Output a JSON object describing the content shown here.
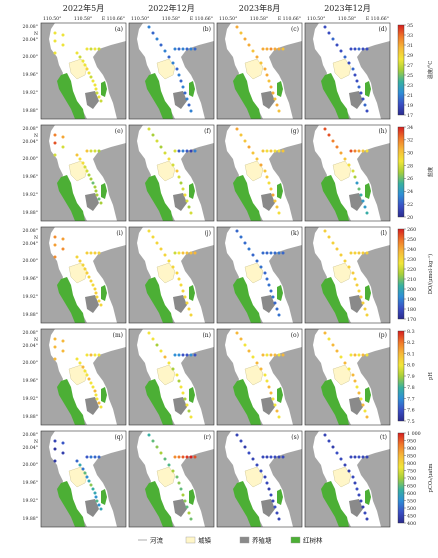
{
  "columns": [
    "2022年5月",
    "2022年12月",
    "2023年8月",
    "2023年12月"
  ],
  "x_ticks": [
    "110.50°",
    "110.58°",
    "E 110.66°"
  ],
  "y_ticks": [
    "20.08°",
    "N",
    "20.04°",
    "20.00°",
    "19.96°",
    "19.92°",
    "19.88°"
  ],
  "panel_letters": [
    [
      "(a)",
      "(b)",
      "(c)",
      "(d)"
    ],
    [
      "(e)",
      "(f)",
      "(g)",
      "(h)"
    ],
    [
      "(i)",
      "(j)",
      "(k)",
      "(l)"
    ],
    [
      "(m)",
      "(n)",
      "(o)",
      "(p)"
    ],
    [
      "(q)",
      "(r)",
      "(s)",
      "(t)"
    ]
  ],
  "colorbars": [
    {
      "label": "温度/°C",
      "ticks": [
        "35",
        "33",
        "31",
        "29",
        "27",
        "25",
        "23",
        "21",
        "19",
        "17"
      ],
      "min": 17,
      "max": 35
    },
    {
      "label": "盐度",
      "ticks": [
        "34",
        "32",
        "30",
        "28",
        "26",
        "24",
        "22",
        "20"
      ],
      "min": 20,
      "max": 34
    },
    {
      "label": "DO/(μmol·kg⁻¹)",
      "ticks": [
        "260",
        "250",
        "240",
        "230",
        "220",
        "210",
        "200",
        "190",
        "180",
        "170"
      ],
      "min": 170,
      "max": 260
    },
    {
      "label": "pH",
      "ticks": [
        "8.3",
        "8.2",
        "8.1",
        "8.0",
        "7.9",
        "7.8",
        "7.7",
        "7.6",
        "7.5"
      ],
      "min": 7.5,
      "max": 8.3
    },
    {
      "label": "pCO₂/μatm",
      "ticks": [
        "1 000",
        "950",
        "900",
        "850",
        "800",
        "750",
        "700",
        "650",
        "600",
        "550",
        "500",
        "450",
        "400"
      ],
      "min": 400,
      "max": 1000
    }
  ],
  "legend": [
    {
      "label": "河流",
      "kind": "river"
    },
    {
      "label": "城镇",
      "kind": "town"
    },
    {
      "label": "养殖塘",
      "kind": "pond"
    },
    {
      "label": "红树林",
      "kind": "mangrove"
    }
  ],
  "colors": {
    "land": "#a6a6a6",
    "water": "#ffffff",
    "mangrove": "#4caf35",
    "town": "#fff6c8",
    "pond": "#8a8a8a"
  },
  "station_values": [
    [
      {
        "open": [
          28,
          28,
          28,
          28,
          28
        ],
        "main": [
          28,
          27,
          28,
          28,
          29,
          28,
          27,
          28,
          28,
          28,
          27,
          28,
          27
        ],
        "branch": [
          28,
          27,
          28,
          27
        ]
      },
      {
        "open": [],
        "main": [
          21,
          20,
          21,
          20,
          21,
          20,
          21,
          20,
          21,
          20,
          21,
          20,
          21,
          20,
          21
        ],
        "branch": [
          21,
          20,
          21,
          20,
          21,
          20
        ]
      },
      {
        "open": [],
        "main": [
          31,
          30,
          31,
          31,
          30,
          31,
          30,
          31,
          31,
          30,
          31,
          31,
          30,
          31,
          30
        ],
        "branch": [
          31,
          31,
          32,
          31,
          31,
          30
        ]
      },
      {
        "open": [],
        "main": [
          19,
          19,
          20,
          19,
          19,
          20,
          19,
          20,
          19,
          19,
          20,
          19,
          19,
          20,
          19
        ],
        "branch": [
          19,
          19,
          20,
          19,
          19
        ]
      }
    ],
    [
      {
        "open": [
          32,
          33,
          28,
          31,
          28
        ],
        "main": [
          30,
          29,
          29,
          28,
          28,
          27,
          27,
          26,
          27,
          27,
          27,
          26,
          27
        ],
        "branch": [
          30,
          28,
          28,
          27
        ]
      },
      {
        "open": [],
        "main": [
          28,
          27,
          28,
          27,
          28,
          29,
          28,
          30,
          28,
          27,
          28,
          29,
          28,
          27,
          28
        ],
        "branch": [
          28,
          22,
          23,
          22,
          21,
          23
        ]
      },
      {
        "open": [],
        "main": [
          31,
          30,
          30,
          31,
          30,
          30,
          31,
          30,
          30,
          29,
          30,
          31,
          30,
          30,
          29
        ],
        "branch": [
          30,
          29,
          30,
          29,
          29,
          30
        ]
      },
      {
        "open": [],
        "main": [
          33,
          33,
          32,
          32,
          31,
          30,
          29,
          28,
          27,
          24,
          26,
          25,
          24,
          24,
          25
        ],
        "branch": [
          33,
          32,
          31,
          30,
          29
        ]
      }
    ],
    [
      {
        "open": [
          245,
          242,
          245,
          242,
          245
        ],
        "main": [
          230,
          232,
          230,
          231,
          232,
          230,
          231,
          229,
          231,
          232,
          230,
          231,
          230
        ],
        "branch": [
          232,
          231,
          232,
          231
        ]
      },
      {
        "open": [],
        "main": [
          228,
          229,
          230,
          231,
          230,
          229,
          230,
          231,
          230,
          229,
          230,
          229,
          230,
          231,
          230
        ],
        "branch": [
          220,
          226,
          235,
          235,
          236,
          238
        ]
      },
      {
        "open": [],
        "main": [
          185,
          187,
          186,
          188,
          185,
          186,
          187,
          185,
          186,
          187,
          186,
          188,
          185,
          186,
          187
        ],
        "branch": [
          186,
          185,
          187,
          186,
          188,
          185
        ]
      },
      {
        "open": [],
        "main": [
          232,
          232,
          231,
          233,
          232,
          231,
          232,
          233,
          231,
          232,
          231,
          233,
          232,
          232,
          231
        ],
        "branch": [
          232,
          231,
          233,
          232,
          232
        ]
      }
    ],
    [
      {
        "open": [
          8.1,
          8.1,
          8.1,
          8.1,
          8.1
        ],
        "main": [
          8.0,
          8.0,
          8.1,
          8.0,
          8.0,
          8.1,
          8.0,
          8.0,
          8.1,
          8.0,
          8.0,
          8.1,
          8.0
        ],
        "branch": [
          8.0,
          8.1,
          8.0,
          8.0
        ]
      },
      {
        "open": [],
        "main": [
          8.0,
          8.0,
          7.9,
          8.0,
          8.1,
          8.0,
          7.9,
          8.0,
          7.9,
          8.0,
          8.0,
          7.9,
          8.0,
          7.9,
          8.0
        ],
        "branch": [
          7.7,
          7.7,
          7.6,
          7.6,
          7.7,
          7.6
        ]
      },
      {
        "open": [],
        "main": [
          8.1,
          8.1,
          8.0,
          8.1,
          8.0,
          8.1,
          8.1,
          8.0,
          8.0,
          8.1,
          8.1,
          8.0,
          8.0,
          8.1,
          8.0
        ],
        "branch": [
          8.1,
          8.0,
          8.1,
          8.1,
          8.0,
          8.1
        ]
      },
      {
        "open": [],
        "main": [
          8.1,
          8.0,
          8.1,
          8.1,
          8.0,
          8.1,
          8.0,
          8.1,
          8.1,
          8.0,
          8.1,
          8.0,
          8.1,
          8.0,
          8.1
        ],
        "branch": [
          8.0,
          8.1,
          8.0,
          8.1,
          8.0
        ]
      }
    ],
    [
      {
        "open": [
          450,
          420,
          430,
          480,
          440
        ],
        "main": [
          500,
          600,
          520,
          650,
          550,
          600,
          680,
          620,
          600,
          560,
          640,
          560,
          600
        ],
        "branch": [
          480,
          520,
          500,
          500
        ]
      },
      {
        "open": [],
        "main": [
          620,
          650,
          680,
          700,
          650,
          640,
          700,
          660,
          680,
          650,
          700,
          680,
          650,
          700,
          660
        ],
        "branch": [
          900,
          920,
          950,
          980,
          1000,
          960
        ]
      },
      {
        "open": [],
        "main": [
          450,
          460,
          440,
          470,
          450,
          460,
          470,
          450,
          460,
          440,
          460,
          450,
          470,
          460,
          450
        ],
        "branch": [
          460,
          450,
          470,
          460,
          450,
          460
        ]
      },
      {
        "open": [],
        "main": [
          450,
          460,
          440,
          470,
          460,
          450,
          440,
          460,
          450,
          470,
          460,
          450,
          440,
          460,
          450
        ],
        "branch": [
          460,
          450,
          470,
          460,
          450
        ]
      }
    ]
  ]
}
